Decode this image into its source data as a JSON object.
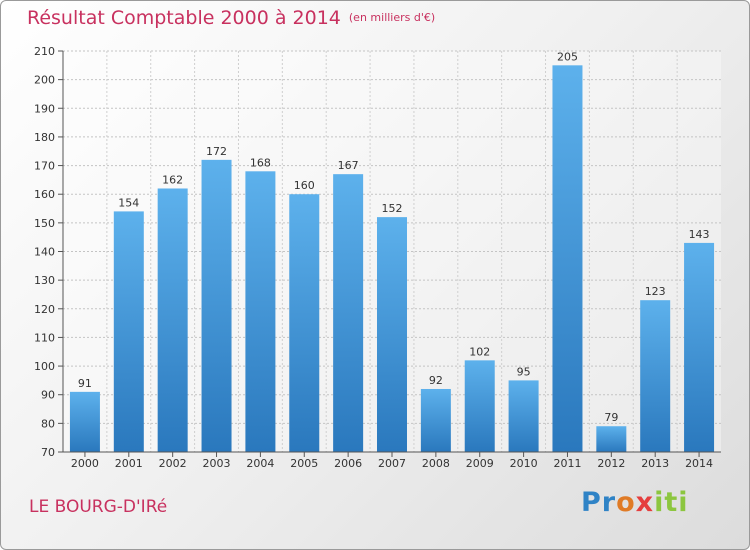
{
  "chart_data": {
    "type": "bar",
    "title": "Résultat Comptable 2000 à 2014",
    "subtitle": "(en milliers d'€)",
    "categories": [
      "2000",
      "2001",
      "2002",
      "2003",
      "2004",
      "2005",
      "2006",
      "2007",
      "2008",
      "2009",
      "2010",
      "2011",
      "2012",
      "2013",
      "2014"
    ],
    "values": [
      91,
      154,
      162,
      172,
      168,
      160,
      167,
      152,
      92,
      102,
      95,
      205,
      79,
      123,
      143
    ],
    "ylim": [
      70,
      210
    ],
    "yticks": [
      70,
      80,
      90,
      100,
      110,
      120,
      130,
      140,
      150,
      160,
      170,
      180,
      190,
      200,
      210
    ],
    "xlabel": "",
    "ylabel": "",
    "grid": true,
    "bar_color": "#4a9ede"
  },
  "footer": {
    "commune": "LE BOURG-D'IRé",
    "brand_parts": [
      "Pr",
      "o",
      "x",
      "iti"
    ]
  }
}
